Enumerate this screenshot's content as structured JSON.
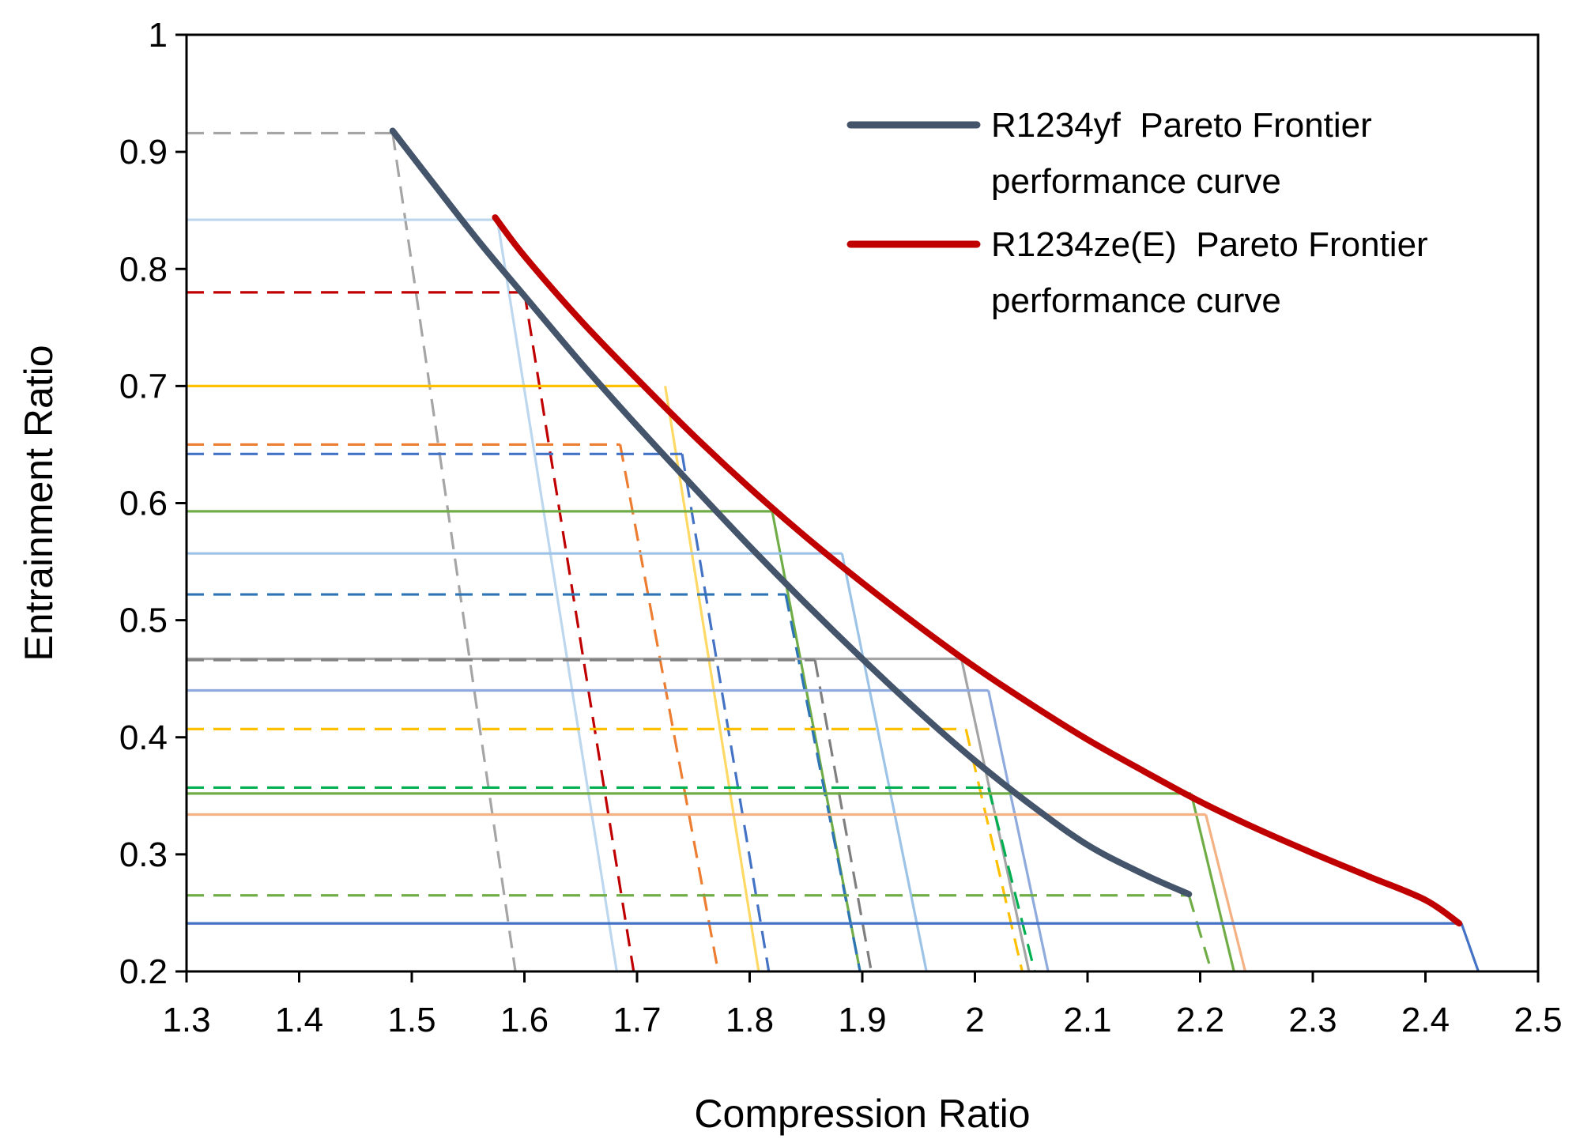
{
  "chart_data": {
    "type": "line",
    "title": "",
    "xlabel": "Compression Ratio",
    "ylabel": "Entrainment Ratio",
    "xlim": [
      1.3,
      2.5
    ],
    "ylim": [
      0.2,
      1.0
    ],
    "xticks": [
      1.3,
      1.4,
      1.5,
      1.6,
      1.7,
      1.8,
      1.9,
      2.0,
      2.1,
      2.2,
      2.3,
      2.4,
      2.5
    ],
    "xtick_labels": [
      "1.3",
      "1.4",
      "1.5",
      "1.6",
      "1.7",
      "1.8",
      "1.9",
      "2",
      "2.1",
      "2.2",
      "2.3",
      "2.4",
      "2.5"
    ],
    "yticks": [
      0.2,
      0.3,
      0.4,
      0.5,
      0.6,
      0.7,
      0.8,
      0.9,
      1.0
    ],
    "ytick_labels": [
      "0.2",
      "0.3",
      "0.4",
      "0.5",
      "0.6",
      "0.7",
      "0.8",
      "0.9",
      "1"
    ],
    "grid": false,
    "legend_position": "top-right",
    "legend": [
      {
        "name": "R1234yf  Pareto Frontier",
        "name_line2": "performance curve",
        "color": "#44546A"
      },
      {
        "name": "R1234ze(E)  Pareto Frontier",
        "name_line2": "performance curve",
        "color": "#C00000"
      }
    ],
    "series": [
      {
        "name": "R1234yf Pareto Frontier performance curve",
        "color": "#44546A",
        "x": [
          1.483,
          1.52,
          1.56,
          1.6,
          1.65,
          1.7,
          1.75,
          1.8,
          1.85,
          1.9,
          1.95,
          2.0,
          2.05,
          2.1,
          2.15,
          2.19
        ],
        "y": [
          0.918,
          0.872,
          0.823,
          0.777,
          0.72,
          0.666,
          0.614,
          0.563,
          0.514,
          0.467,
          0.422,
          0.38,
          0.342,
          0.308,
          0.283,
          0.266
        ]
      },
      {
        "name": "R1234ze(E) Pareto Frontier performance curve",
        "color": "#C00000",
        "x": [
          1.574,
          1.6,
          1.65,
          1.7,
          1.75,
          1.8,
          1.85,
          1.9,
          1.95,
          2.0,
          2.05,
          2.1,
          2.15,
          2.2,
          2.25,
          2.3,
          2.35,
          2.4,
          2.43
        ],
        "y": [
          0.844,
          0.811,
          0.756,
          0.706,
          0.658,
          0.613,
          0.571,
          0.532,
          0.495,
          0.46,
          0.428,
          0.398,
          0.371,
          0.345,
          0.322,
          0.301,
          0.281,
          0.261,
          0.241
        ]
      }
    ],
    "operating_lines": [
      {
        "color": "#A5A5A5",
        "dash": true,
        "y": 0.916,
        "x_corner": 1.483,
        "x_bottom": 1.592
      },
      {
        "color": "#BDD7EE",
        "dash": false,
        "y": 0.842,
        "x_corner": 1.576,
        "x_bottom": 1.682
      },
      {
        "color": "#C00000",
        "dash": true,
        "y": 0.78,
        "x_corner": 1.6,
        "x_bottom": 1.697
      },
      {
        "color": "#FFC000",
        "dash": false,
        "y": 0.7,
        "x_corner": 1.725,
        "x_bottom": 1.808,
        "x_end": 1.703,
        "color_alt": "#FFD966"
      },
      {
        "color": "#ED7D31",
        "dash": true,
        "y": 0.65,
        "x_corner": 1.685,
        "x_bottom": 1.772
      },
      {
        "color": "#4472C4",
        "dash": true,
        "y": 0.642,
        "x_corner": 1.74,
        "x_bottom": 1.817
      },
      {
        "color": "#70AD47",
        "dash": false,
        "y": 0.593,
        "x_corner": 1.82,
        "x_bottom": 1.898
      },
      {
        "color": "#9DC3E6",
        "dash": false,
        "y": 0.557,
        "x_corner": 1.882,
        "x_bottom": 1.957
      },
      {
        "color": "#2E75B6",
        "dash": true,
        "y": 0.522,
        "x_corner": 1.832,
        "x_bottom": 1.898
      },
      {
        "color": "#A5A5A5",
        "dash": false,
        "y": 0.467,
        "x_corner": 1.988,
        "x_bottom": 2.048
      },
      {
        "color": "#7F7F7F",
        "dash": true,
        "y": 0.466,
        "x_corner": 1.858,
        "x_bottom": 1.908
      },
      {
        "color": "#8FAADC",
        "dash": false,
        "y": 0.44,
        "x_corner": 2.012,
        "x_bottom": 2.065
      },
      {
        "color": "#FFC000",
        "dash": true,
        "y": 0.407,
        "x_corner": 1.992,
        "x_bottom": 2.042
      },
      {
        "color": "#00B050",
        "dash": true,
        "y": 0.357,
        "x_corner": 2.012,
        "x_bottom": 2.053
      },
      {
        "color": "#70AD47",
        "dash": false,
        "y": 0.352,
        "x_corner": 2.192,
        "x_bottom": 2.23
      },
      {
        "color": "#F4B183",
        "dash": false,
        "y": 0.334,
        "x_corner": 2.205,
        "x_bottom": 2.24
      },
      {
        "color": "#70AD47",
        "dash": true,
        "y": 0.265,
        "x_corner": 2.19,
        "x_bottom": 2.21
      },
      {
        "color": "#4472C4",
        "dash": false,
        "y": 0.241,
        "x_corner": 2.432,
        "x_bottom": 2.447
      }
    ]
  }
}
